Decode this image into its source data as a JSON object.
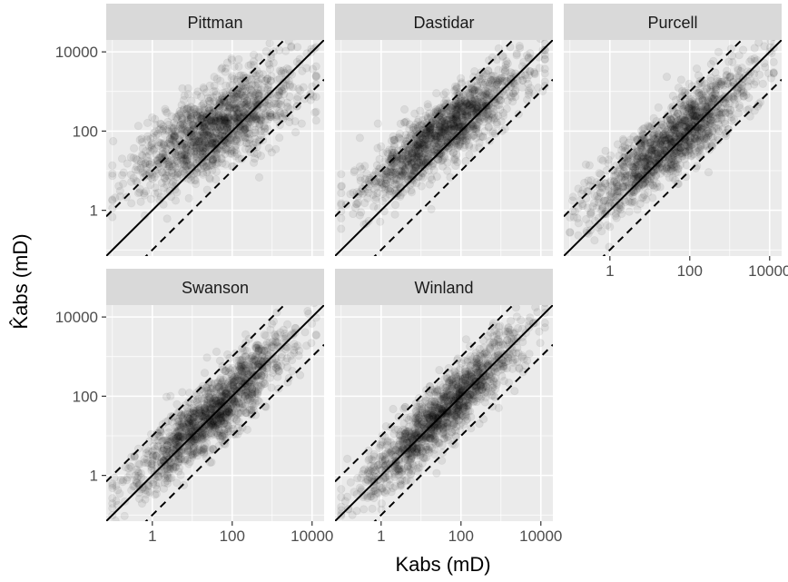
{
  "chart_data": {
    "type": "scatter",
    "layout": "facet_wrap",
    "xlabel": "Kabs (mD)",
    "ylabel": "K̂abs (mD)",
    "xscale": "log10",
    "yscale": "log10",
    "xlim": [
      0.07,
      20000
    ],
    "ylim": [
      0.07,
      20000
    ],
    "x_ticks": [
      1,
      100,
      10000
    ],
    "x_tick_labels": [
      "1",
      "100",
      "10000"
    ],
    "y_ticks": [
      1,
      100,
      10000
    ],
    "y_tick_labels": [
      "1",
      "100",
      "10000"
    ],
    "reference_lines": [
      {
        "label": "y = x",
        "style": "solid",
        "factor": 1
      },
      {
        "label": "y = 10x",
        "style": "dashed",
        "factor": 10
      },
      {
        "label": "y = x/10",
        "style": "dashed",
        "factor": 0.1
      }
    ],
    "colors": {
      "panel_bg": "#ebebeb",
      "grid": "#ffffff",
      "strip_bg": "#d9d9d9",
      "points": "#000000",
      "lines": "#000000"
    },
    "point_alpha": 0.07,
    "panels": [
      {
        "name": "Pittman",
        "n_points": 1400,
        "x_center_log": 1.55,
        "x_sd_log": 1.0,
        "slope": 0.52,
        "intercept_log": 1.25,
        "noise_log": 0.55
      },
      {
        "name": "Dastidar",
        "n_points": 1400,
        "x_center_log": 1.55,
        "x_sd_log": 1.0,
        "slope": 0.72,
        "intercept_log": 0.85,
        "noise_log": 0.42
      },
      {
        "name": "Purcell",
        "n_points": 1400,
        "x_center_log": 1.55,
        "x_sd_log": 1.0,
        "slope": 0.78,
        "intercept_log": 0.55,
        "noise_log": 0.45
      },
      {
        "name": "Swanson",
        "n_points": 1400,
        "x_center_log": 1.55,
        "x_sd_log": 1.0,
        "slope": 0.88,
        "intercept_log": 0.25,
        "noise_log": 0.45
      },
      {
        "name": "Winland",
        "n_points": 1400,
        "x_center_log": 1.55,
        "x_sd_log": 1.0,
        "slope": 0.93,
        "intercept_log": 0.15,
        "noise_log": 0.4
      }
    ]
  }
}
